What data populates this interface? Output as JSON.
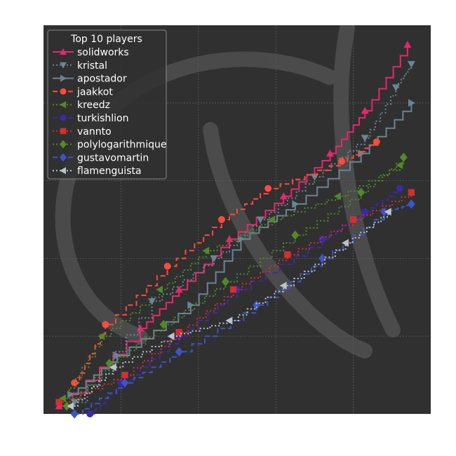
{
  "chart_data": {
    "type": "line",
    "step": true,
    "title": "",
    "xlabel": "",
    "ylabel": "",
    "xlim": [
      0,
      100
    ],
    "ylim": [
      0,
      100
    ],
    "grid": true,
    "background": "#303030",
    "grid_color": "#5a5a5a",
    "watermark": "logo",
    "legend": {
      "title": "Top 10 players",
      "placement": "top-left"
    },
    "series": [
      {
        "name": "solidworks",
        "color": "#e8266e",
        "linestyle": "solid",
        "marker": "triangle-up",
        "x": [
          4,
          25,
          35,
          48,
          62,
          74,
          83,
          94
        ],
        "y": [
          2,
          22,
          32,
          45,
          56,
          67,
          78,
          95
        ]
      },
      {
        "name": "kristal",
        "color": "#6b8496",
        "linestyle": "dotted",
        "marker": "triangle-down",
        "x": [
          8,
          28,
          44,
          56,
          70,
          83,
          91,
          95
        ],
        "y": [
          3,
          29,
          40,
          50,
          61,
          71,
          84,
          90
        ]
      },
      {
        "name": "apostador",
        "color": "#6b8496",
        "linestyle": "solid",
        "marker": "triangle-right",
        "x": [
          7,
          19,
          38,
          51,
          65,
          82,
          95
        ],
        "y": [
          5,
          15,
          28,
          45,
          54,
          67,
          80
        ]
      },
      {
        "name": "jaakkot",
        "color": "#ff4a3d",
        "linestyle": "dashed",
        "marker": "circle",
        "x": [
          8,
          16,
          32,
          46,
          58,
          77,
          86
        ],
        "y": [
          8,
          23,
          38,
          50,
          58,
          65,
          70
        ]
      },
      {
        "name": "kreedz",
        "color": "#4f8a28",
        "linestyle": "dotted",
        "marker": "triangle-left",
        "x": [
          5,
          15,
          30,
          42,
          59,
          76,
          92
        ],
        "y": [
          4,
          20,
          32,
          42,
          50,
          56,
          64
        ]
      },
      {
        "name": "turkishlion",
        "color": "#3a2aa8",
        "linestyle": "dashed",
        "marker": "circle",
        "x": [
          12,
          20,
          35,
          50,
          72,
          83,
          92
        ],
        "y": [
          0,
          8,
          20,
          32,
          45,
          52,
          58
        ]
      },
      {
        "name": "vannto",
        "color": "#d32f2f",
        "linestyle": "dotted",
        "marker": "square",
        "x": [
          4,
          21,
          35,
          49,
          63,
          80,
          95
        ],
        "y": [
          3,
          10,
          21,
          32,
          41,
          50,
          57
        ]
      },
      {
        "name": "polylogarithmique",
        "color": "#4f8a28",
        "linestyle": "dotted",
        "marker": "diamond",
        "x": [
          6,
          17,
          31,
          47,
          65,
          82,
          93
        ],
        "y": [
          2,
          13,
          23,
          34,
          46,
          57,
          66
        ]
      },
      {
        "name": "gustavomartin",
        "color": "#3a55c8",
        "linestyle": "dashed",
        "marker": "diamond",
        "x": [
          8,
          21,
          35,
          55,
          72,
          88,
          95
        ],
        "y": [
          0,
          8,
          16,
          28,
          40,
          52,
          54
        ]
      },
      {
        "name": "flamenguista",
        "color": "#b9c4cc",
        "linestyle": "dotted",
        "marker": "triangle-left",
        "x": [
          7,
          18,
          33,
          48,
          62,
          78,
          89
        ],
        "y": [
          2,
          12,
          20,
          24,
          33,
          44,
          52
        ]
      }
    ]
  }
}
